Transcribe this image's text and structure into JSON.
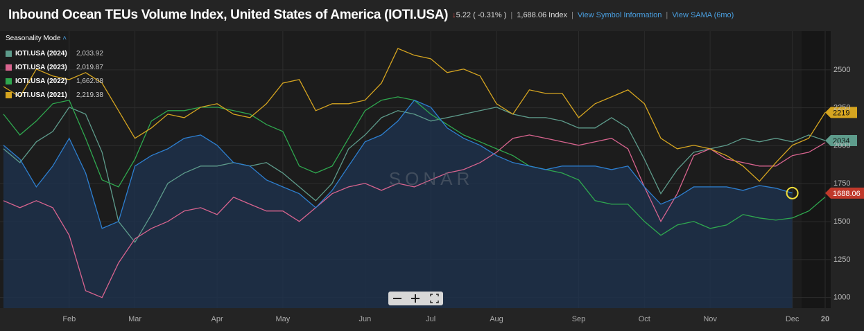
{
  "header": {
    "title": "Inbound Ocean TEUs Volume Index, United States of America (IOTI.USA)",
    "change": "5.22 ( -0.31% )",
    "last": "1,688.06 Index",
    "link_info": "View Symbol Information",
    "link_sama": "View SAMA (6mo)"
  },
  "chart_data": {
    "type": "line",
    "legend_title": "Seasonality Mode",
    "watermark": "SONAR",
    "categories": [
      null,
      null,
      null,
      null,
      "Feb",
      null,
      null,
      null,
      "Mar",
      null,
      null,
      null,
      null,
      "Apr",
      null,
      null,
      null,
      "May",
      null,
      null,
      null,
      null,
      "Jun",
      null,
      null,
      null,
      "Jul",
      null,
      null,
      null,
      "Aug",
      null,
      null,
      null,
      null,
      "Sep",
      null,
      null,
      null,
      "Oct",
      null,
      null,
      null,
      "Nov",
      null,
      null,
      null,
      null,
      "Dec",
      null,
      "20"
    ],
    "ylim": [
      930,
      2755
    ],
    "yticks": [
      1000,
      1250,
      1500,
      1750,
      2000,
      2250,
      2500
    ],
    "grid": true,
    "series": [
      {
        "name": "IOTI.USA (2024)",
        "color": "#5e9c8c",
        "last_label": "2,033.92",
        "tag": "2034",
        "values": [
          1980,
          1889,
          2026,
          2094,
          2254,
          2208,
          1957,
          1501,
          1364,
          1547,
          1752,
          1820,
          1866,
          1866,
          1889,
          1866,
          1889,
          1820,
          1729,
          1638,
          1752,
          1980,
          2071,
          2185,
          2231,
          2208,
          2163,
          2185,
          2208,
          2231,
          2254,
          2208,
          2185,
          2185,
          2163,
          2117,
          2117,
          2185,
          2117,
          1912,
          1684,
          1843,
          1957,
          1980,
          2003,
          2049,
          2026,
          2049,
          2026,
          2071,
          2033.92
        ]
      },
      {
        "name": "IOTI.USA (2023)",
        "color": "#d9648f",
        "last_label": "2,019.87",
        "values": [
          1638,
          1592,
          1638,
          1592,
          1410,
          1045,
          1000,
          1228,
          1387,
          1455,
          1501,
          1570,
          1592,
          1547,
          1661,
          1615,
          1570,
          1570,
          1501,
          1592,
          1684,
          1729,
          1752,
          1706,
          1752,
          1729,
          1775,
          1820,
          1843,
          1889,
          1957,
          2049,
          2071,
          2049,
          2026,
          2003,
          2026,
          2049,
          1980,
          1729,
          1501,
          1684,
          1935,
          1980,
          1912,
          1889,
          1866,
          1866,
          1935,
          1957,
          2019.87
        ]
      },
      {
        "name": "IOTI.USA (2022)",
        "color": "#2fa84f",
        "last_label": "1,662.08",
        "values": [
          2208,
          2071,
          2163,
          2277,
          2300,
          2049,
          1775,
          1729,
          1912,
          2163,
          2231,
          2231,
          2254,
          2254,
          2231,
          2208,
          2140,
          2094,
          1866,
          1820,
          1866,
          2049,
          2231,
          2300,
          2322,
          2300,
          2208,
          2140,
          2071,
          2026,
          1980,
          1935,
          1866,
          1843,
          1820,
          1775,
          1638,
          1615,
          1615,
          1501,
          1410,
          1478,
          1501,
          1455,
          1478,
          1547,
          1524,
          1510,
          1524,
          1570,
          1662.08
        ]
      },
      {
        "name": "IOTI.USA (2021)",
        "color": "#d6a520",
        "last_label": "2,219.38",
        "tag": "2219",
        "values": [
          2390,
          2322,
          2505,
          2460,
          2436,
          2482,
          2413,
          2231,
          2049,
          2117,
          2208,
          2185,
          2254,
          2277,
          2208,
          2185,
          2277,
          2413,
          2436,
          2231,
          2277,
          2277,
          2300,
          2413,
          2641,
          2596,
          2573,
          2482,
          2505,
          2460,
          2277,
          2208,
          2368,
          2345,
          2345,
          2185,
          2277,
          2322,
          2368,
          2277,
          2049,
          1980,
          2003,
          1980,
          1935,
          1866,
          1766,
          1889,
          2003,
          2049,
          2219.38
        ]
      },
      {
        "color": "#2d7fd0",
        "area": true,
        "tag": "1688.06",
        "values": [
          2003,
          1912,
          1729,
          1866,
          2049,
          1820,
          1455,
          1501,
          1866,
          1935,
          1980,
          2049,
          2071,
          2003,
          1889,
          1866,
          1775,
          1729,
          1684,
          1592,
          1706,
          1866,
          2026,
          2071,
          2163,
          2300,
          2254,
          2117,
          2049,
          2003,
          1935,
          1889,
          1866,
          1843,
          1866,
          1866,
          1866,
          1843,
          1866,
          1729,
          1615,
          1661,
          1729,
          1729,
          1729,
          1706,
          1738,
          1720,
          1688.06,
          null,
          null
        ]
      }
    ]
  }
}
